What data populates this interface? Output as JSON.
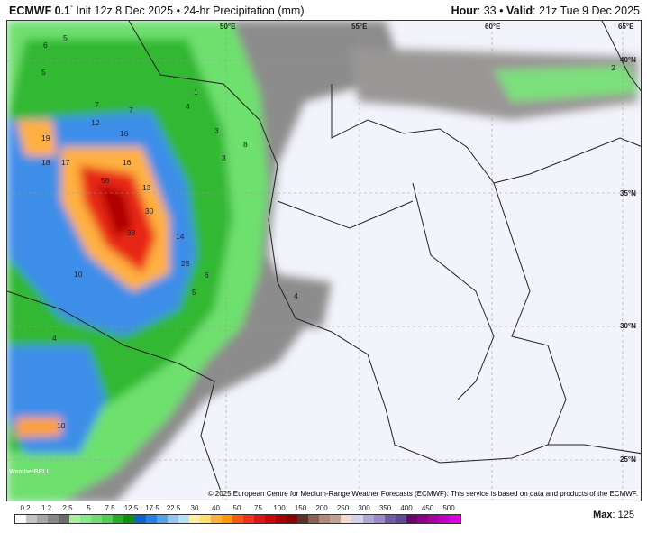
{
  "header": {
    "model": "ECMWF 0.1",
    "degree": "°",
    "init": "Init 12z 8 Dec 2025",
    "separator": "•",
    "product": "24-hr Precipitation (mm)",
    "hour_label": "Hour",
    "hour": "33",
    "valid_label": "Valid",
    "valid": "21z Tue 9 Dec 2025"
  },
  "map": {
    "longitude_labels": [
      "50°E",
      "55°E",
      "60°E",
      "65°E"
    ],
    "latitude_labels": [
      "40°N",
      "35°N",
      "30°N",
      "25°N"
    ],
    "precip_labels": [
      "6",
      "5",
      "5",
      "3",
      "4",
      "1",
      "12",
      "7",
      "7",
      "16",
      "19",
      "18",
      "17",
      "16",
      "58",
      "13",
      "30",
      "38",
      "14",
      "25",
      "6",
      "5",
      "4",
      "10",
      "2",
      "3",
      "4",
      "8",
      "10"
    ],
    "watermark": "WeatherBELL"
  },
  "copyright": "© 2025 European Centre for Medium-Range Weather Forecasts (ECMWF). This service is based on data and products of the ECMWF.",
  "legend": {
    "ticks": [
      "0.2",
      "1.2",
      "2.5",
      "5",
      "7.5",
      "12.5",
      "17.5",
      "22.5",
      "30",
      "40",
      "50",
      "75",
      "100",
      "150",
      "200",
      "250",
      "300",
      "350",
      "400",
      "450",
      "500"
    ],
    "colors": [
      "#ffffff",
      "#c4c4c4",
      "#a6a6a6",
      "#888888",
      "#6c6c6c",
      "#a8f0a0",
      "#88e888",
      "#6ee06e",
      "#4ed24e",
      "#22b022",
      "#0e920e",
      "#1060d0",
      "#2282e8",
      "#52a2f0",
      "#92c8f0",
      "#b4e2f2",
      "#fff0a0",
      "#ffe070",
      "#f8b040",
      "#ff9800",
      "#f85818",
      "#f03418",
      "#e01414",
      "#c80808",
      "#a80000",
      "#8a0000",
      "#603028",
      "#8c6050",
      "#b08878",
      "#c4a090",
      "#f0dad2",
      "#d2d2e8",
      "#b2a8d8",
      "#9a8ac8",
      "#725caa",
      "#604898",
      "#700070",
      "#8c008c",
      "#a800a8",
      "#c000c0",
      "#e000e0"
    ],
    "max_label": "Max",
    "max_value": "125"
  }
}
